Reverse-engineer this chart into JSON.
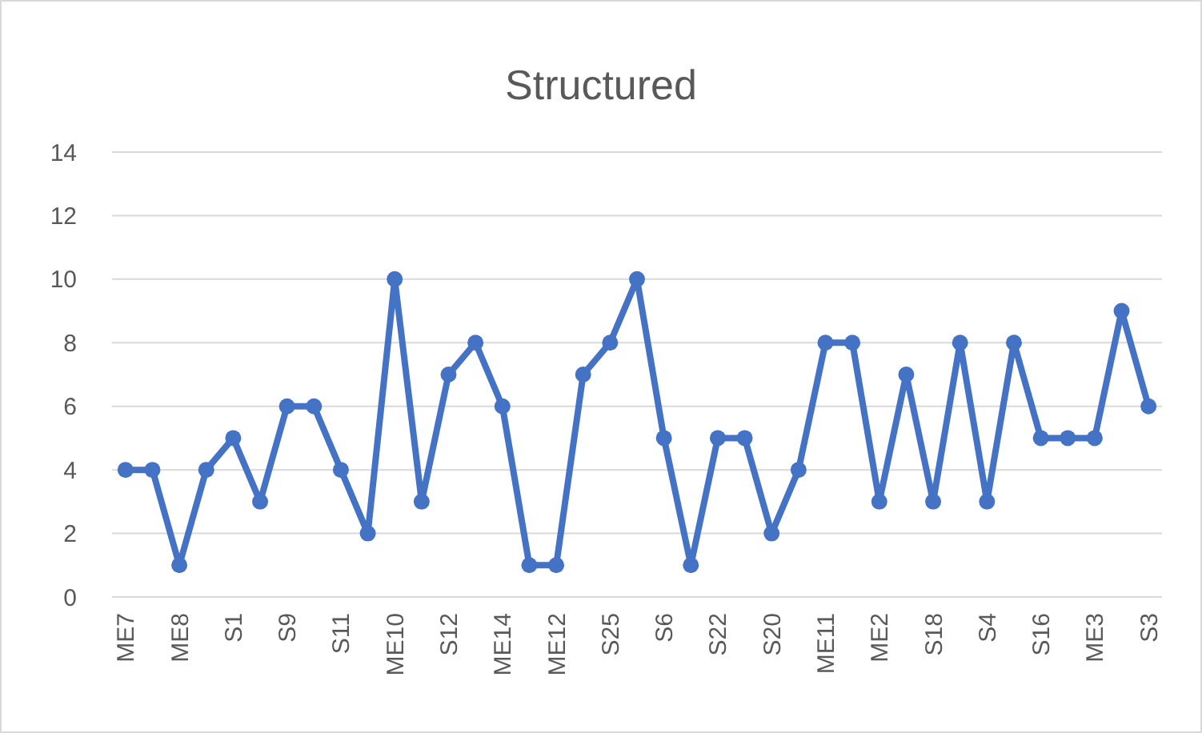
{
  "chart_data": {
    "type": "line",
    "title": "Structured",
    "categories": [
      "ME7",
      null,
      "ME8",
      null,
      "S1",
      null,
      "S9",
      null,
      "S11",
      null,
      "ME10",
      null,
      "S12",
      null,
      "ME14",
      null,
      "ME12",
      null,
      "S25",
      null,
      "S6",
      null,
      "S22",
      null,
      "S20",
      null,
      "ME11",
      null,
      "ME2",
      null,
      "S18",
      null,
      "S4",
      null,
      "S16",
      null,
      "ME3",
      null,
      "S3"
    ],
    "series": [
      {
        "color": "#4472c4",
        "values": [
          4,
          4,
          1,
          4,
          5,
          3,
          6,
          6,
          4,
          2,
          10,
          3,
          7,
          8,
          6,
          1,
          1,
          7,
          8,
          10,
          5,
          1,
          5,
          5,
          2,
          4,
          8,
          8,
          3,
          7,
          3,
          8,
          3,
          8,
          5,
          5,
          5,
          9,
          6
        ]
      }
    ],
    "ylim": [
      0,
      14
    ],
    "yticks": [
      0,
      2,
      4,
      6,
      8,
      10,
      12,
      14
    ],
    "grid": "y",
    "marker": "circle"
  }
}
